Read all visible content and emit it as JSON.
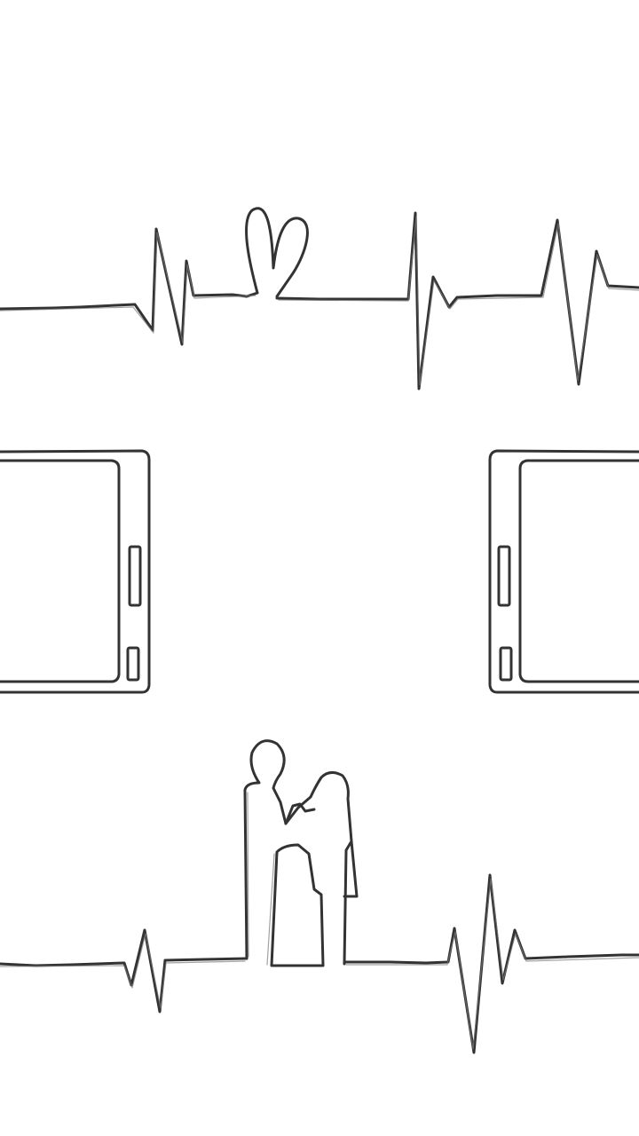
{
  "colors": {
    "background": "#ffffff",
    "ink": "#333333",
    "ink_light": "#6a6a6a"
  },
  "icons": {
    "top_heartbeat": "heartbeat-line-with-heart-icon",
    "left_frame": "phone-frame-icon",
    "right_frame": "phone-frame-icon",
    "bottom_heartbeat": "heartbeat-line-with-couple-icon",
    "couple": "couple-silhouette-icon"
  }
}
